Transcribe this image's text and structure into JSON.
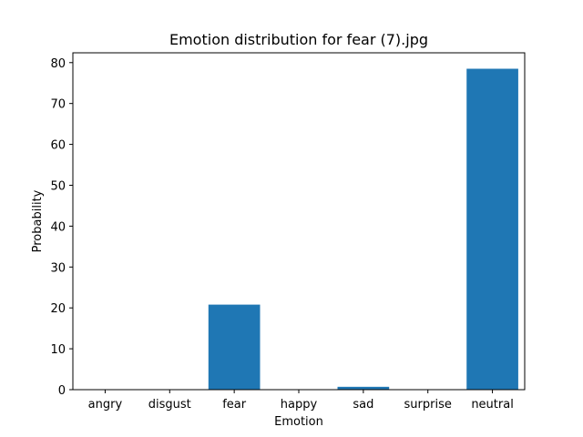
{
  "chart_data": {
    "type": "bar",
    "title": "Emotion distribution for fear (7).jpg",
    "xlabel": "Emotion",
    "ylabel": "Probability",
    "categories": [
      "angry",
      "disgust",
      "fear",
      "happy",
      "sad",
      "surprise",
      "neutral"
    ],
    "values": [
      0.02,
      0.01,
      20.8,
      0.0,
      0.7,
      0.0,
      78.5
    ],
    "ylim": [
      0,
      82.4
    ],
    "yticks": [
      0,
      10,
      20,
      30,
      40,
      50,
      60,
      70,
      80
    ],
    "ytick_labels": [
      "0",
      "10",
      "20",
      "30",
      "40",
      "50",
      "60",
      "70",
      "80"
    ],
    "bar_color": "#1f77b4",
    "grid": false,
    "legend": "none"
  }
}
